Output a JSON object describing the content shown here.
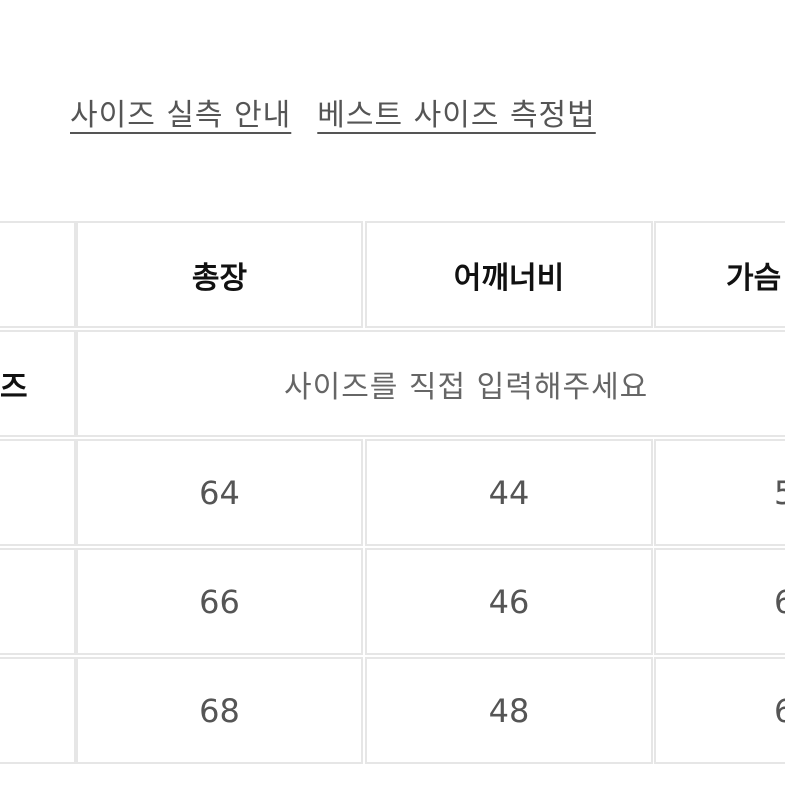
{
  "links": [
    "사이즈 실측 안내",
    "베스트 사이즈 측정법"
  ],
  "table": {
    "headers": [
      "",
      "총장",
      "어깨너비",
      "가슴"
    ],
    "input_row": {
      "label": "즈",
      "note": "사이즈를 직접 입력해주세요"
    },
    "rows": [
      [
        "",
        "64",
        "44",
        "5"
      ],
      [
        "",
        "66",
        "46",
        "6"
      ],
      [
        "",
        "68",
        "48",
        "6"
      ]
    ]
  }
}
